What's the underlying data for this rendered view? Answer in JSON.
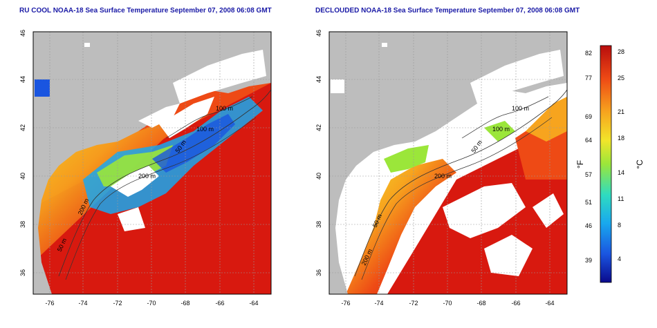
{
  "panels": [
    {
      "title": "RU COOL NOAA-18 Sea Surface Temperature September 07, 2008 06:08 GMT",
      "lon_ticks": [
        "-76",
        "-74",
        "-72",
        "-70",
        "-68",
        "-66",
        "-64"
      ],
      "lat_ticks": [
        "36",
        "38",
        "40",
        "42",
        "44",
        "46"
      ],
      "contour_labels": [
        "50 m",
        "100 m",
        "100 m",
        "200 m",
        "50 m",
        "200 m"
      ]
    },
    {
      "title": "DECLOUDED NOAA-18 Sea Surface Temperature September 07, 2008 06:08 GMT",
      "lon_ticks": [
        "-76",
        "-74",
        "-72",
        "-70",
        "-68",
        "-66",
        "-64"
      ],
      "lat_ticks": [
        "36",
        "38",
        "40",
        "42",
        "44",
        "46"
      ],
      "contour_labels": [
        "100 m",
        "100 m",
        "50 m",
        "200 m",
        "50 m",
        "200 m"
      ]
    }
  ],
  "colorbar": {
    "f_label": "°F",
    "c_label": "°C",
    "f_ticks": [
      "82",
      "77",
      "69",
      "64",
      "57",
      "51",
      "46",
      "39"
    ],
    "c_ticks": [
      "28",
      "25",
      "21",
      "18",
      "14",
      "11",
      "8",
      "4"
    ],
    "colors": [
      "#0a0a8c",
      "#1a55e0",
      "#19a8ee",
      "#2fdcc0",
      "#9be63a",
      "#f2e52a",
      "#f7a41e",
      "#ee4a15",
      "#b80d0d"
    ]
  },
  "colors": {
    "land": "#bdbdbd",
    "cloud": "#ffffff",
    "title": "#1a1aa6"
  }
}
